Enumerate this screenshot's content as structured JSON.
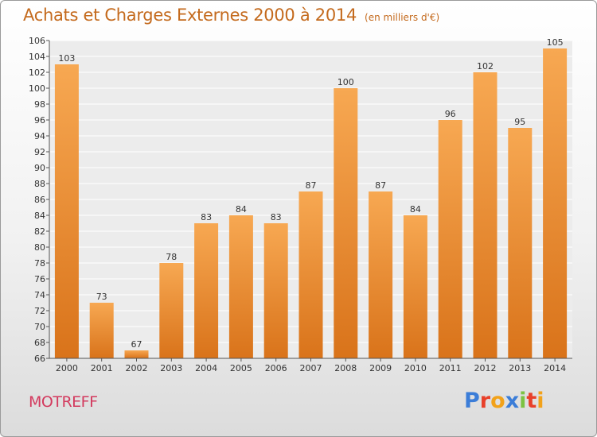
{
  "header": {
    "title": "Achats et Charges Externes 2000 à 2014",
    "unit": "(en milliers d'€)"
  },
  "footer": {
    "commune": "MOTREFF",
    "logo_text": "Proxiti"
  },
  "colors": {
    "title": "#c46a1d",
    "commune": "#d33a5e",
    "bar_top": "#f7a852",
    "bar_bottom": "#d9731a",
    "logo": [
      "#3b7dd8",
      "#e8402a",
      "#f2a21a",
      "#3b7dd8",
      "#7cc242",
      "#e8402a",
      "#f2a21a"
    ]
  },
  "chart_data": {
    "type": "bar",
    "categories": [
      "2000",
      "2001",
      "2002",
      "2003",
      "2004",
      "2005",
      "2006",
      "2007",
      "2008",
      "2009",
      "2010",
      "2011",
      "2012",
      "2013",
      "2014"
    ],
    "values": [
      103,
      73,
      67,
      78,
      83,
      84,
      83,
      87,
      100,
      87,
      84,
      96,
      102,
      95,
      105
    ],
    "title": "Achats et Charges Externes 2000 à 2014",
    "ylim": [
      66,
      106
    ],
    "yticks": [
      66,
      68,
      70,
      72,
      74,
      76,
      78,
      80,
      82,
      84,
      86,
      88,
      90,
      92,
      94,
      96,
      98,
      100,
      102,
      104,
      106
    ],
    "grid": true,
    "legend": "none"
  }
}
